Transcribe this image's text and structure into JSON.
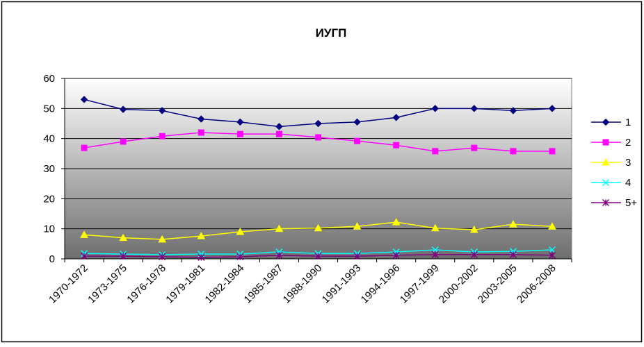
{
  "chart_data": {
    "type": "line",
    "title": "ИУГП",
    "categories": [
      "1970-1972",
      "1973-1975",
      "1976-1978",
      "1979-1981",
      "1982-1984",
      "1985-1987",
      "1988-1990",
      "1991-1993",
      "1994-1996",
      "1997-1999",
      "2000-2002",
      "2003-2005",
      "2006-2008"
    ],
    "series": [
      {
        "name": "1",
        "color": "#000080",
        "marker": "diamond",
        "values": [
          53,
          49.7,
          49.3,
          46.5,
          45.5,
          44,
          45,
          45.5,
          47,
          50,
          50,
          49.3,
          50
        ]
      },
      {
        "name": "2",
        "color": "#ff00ff",
        "marker": "square",
        "values": [
          36.9,
          39,
          40.8,
          42,
          41.5,
          41.5,
          40.4,
          39.2,
          37.8,
          35.8,
          36.9,
          35.8,
          35.8
        ]
      },
      {
        "name": "3",
        "color": "#ffff00",
        "marker": "triangle",
        "values": [
          8,
          7,
          6.5,
          7.6,
          9,
          10,
          10.2,
          10.8,
          12.2,
          10.2,
          9.7,
          11.5,
          10.8
        ]
      },
      {
        "name": "4",
        "color": "#00ffff",
        "marker": "x",
        "values": [
          1.8,
          1.6,
          1.4,
          1.6,
          1.6,
          2.3,
          1.8,
          1.8,
          2.3,
          3,
          2.3,
          2.5,
          3
        ]
      },
      {
        "name": "5+",
        "color": "#800080",
        "marker": "star",
        "values": [
          0.9,
          0.9,
          0.7,
          0.5,
          0.7,
          1.2,
          0.9,
          0.9,
          1.2,
          1.4,
          1.4,
          1.4,
          1.2
        ]
      }
    ],
    "ylim": [
      0,
      60
    ],
    "yticks": [
      0,
      10,
      20,
      30,
      40,
      50,
      60
    ],
    "grid": true,
    "legend": "right"
  }
}
